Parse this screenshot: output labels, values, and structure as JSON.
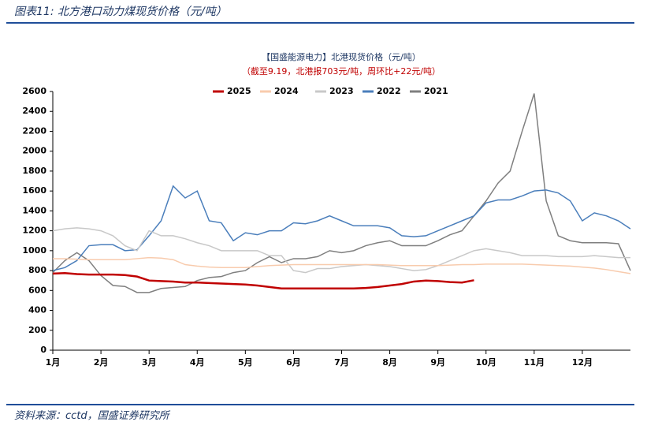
{
  "header": {
    "title": "图表11:  北方港口动力煤现货价格（元/吨）"
  },
  "chart_data": {
    "type": "line",
    "title": "【国盛能源电力】北港现货价格（元/吨）",
    "subtitle": "（截至9.19，北港报703元/吨，周环比+22元/吨）",
    "x": [
      1,
      1.25,
      1.5,
      1.75,
      2,
      2.25,
      2.5,
      2.75,
      3,
      3.25,
      3.5,
      3.75,
      4,
      4.25,
      4.5,
      4.75,
      5,
      5.25,
      5.5,
      5.75,
      6,
      6.25,
      6.5,
      6.75,
      7,
      7.25,
      7.5,
      7.75,
      8,
      8.25,
      8.5,
      8.75,
      9,
      9.25,
      9.5,
      9.75,
      10,
      10.25,
      10.5,
      10.75,
      11,
      11.25,
      11.5,
      11.75,
      12,
      12.25,
      12.5,
      12.75,
      13
    ],
    "xlim": [
      1,
      13
    ],
    "xticks": [
      {
        "value": 1,
        "label": "1月"
      },
      {
        "value": 2,
        "label": "2月"
      },
      {
        "value": 3,
        "label": "3月"
      },
      {
        "value": 4,
        "label": "4月"
      },
      {
        "value": 5,
        "label": "5月"
      },
      {
        "value": 6,
        "label": "6月"
      },
      {
        "value": 7,
        "label": "7月"
      },
      {
        "value": 8,
        "label": "8月"
      },
      {
        "value": 9,
        "label": "9月"
      },
      {
        "value": 10,
        "label": "10月"
      },
      {
        "value": 11,
        "label": "11月"
      },
      {
        "value": 12,
        "label": "12月"
      }
    ],
    "ylim": [
      0,
      2600
    ],
    "yticks": [
      0,
      200,
      400,
      600,
      800,
      1000,
      1200,
      1400,
      1600,
      1800,
      2000,
      2200,
      2400,
      2600
    ],
    "grid": false,
    "series": [
      {
        "name": "2025",
        "color": "#c00000",
        "width": 2.5,
        "values": [
          770,
          775,
          765,
          760,
          760,
          760,
          755,
          740,
          700,
          695,
          690,
          680,
          680,
          675,
          670,
          665,
          660,
          650,
          635,
          620,
          620,
          620,
          620,
          620,
          620,
          620,
          625,
          635,
          650,
          665,
          690,
          700,
          695,
          685,
          680,
          703,
          null,
          null,
          null,
          null,
          null,
          null,
          null,
          null,
          null,
          null,
          null,
          null,
          null
        ]
      },
      {
        "name": "2024",
        "color": "#f8cbad",
        "width": 1.5,
        "values": [
          920,
          920,
          915,
          910,
          910,
          910,
          910,
          920,
          930,
          925,
          910,
          860,
          845,
          835,
          830,
          830,
          830,
          840,
          850,
          855,
          860,
          860,
          860,
          860,
          860,
          860,
          860,
          860,
          855,
          850,
          850,
          850,
          850,
          855,
          860,
          860,
          865,
          865,
          865,
          865,
          860,
          855,
          850,
          845,
          835,
          825,
          810,
          790,
          770
        ]
      },
      {
        "name": "2023",
        "color": "#c8c8c8",
        "width": 1.5,
        "values": [
          1200,
          1220,
          1230,
          1220,
          1200,
          1150,
          1050,
          1000,
          1200,
          1150,
          1150,
          1120,
          1080,
          1050,
          1000,
          1000,
          1000,
          1000,
          950,
          950,
          800,
          780,
          820,
          820,
          840,
          850,
          860,
          850,
          840,
          820,
          800,
          810,
          850,
          900,
          950,
          1000,
          1020,
          1000,
          980,
          950,
          950,
          950,
          940,
          940,
          940,
          950,
          940,
          930,
          930
        ]
      },
      {
        "name": "2022",
        "color": "#4a7ebb",
        "width": 1.5,
        "values": [
          800,
          830,
          900,
          1050,
          1060,
          1060,
          1000,
          1010,
          1150,
          1300,
          1650,
          1530,
          1600,
          1300,
          1280,
          1100,
          1180,
          1160,
          1200,
          1200,
          1280,
          1270,
          1300,
          1350,
          1300,
          1250,
          1250,
          1250,
          1230,
          1150,
          1140,
          1150,
          1200,
          1250,
          1300,
          1350,
          1480,
          1510,
          1510,
          1550,
          1600,
          1610,
          1580,
          1500,
          1300,
          1380,
          1350,
          1300,
          1220
        ]
      },
      {
        "name": "2021",
        "color": "#7f7f7f",
        "width": 1.5,
        "values": [
          780,
          900,
          980,
          900,
          750,
          650,
          640,
          580,
          580,
          620,
          630,
          640,
          700,
          730,
          740,
          780,
          800,
          880,
          940,
          880,
          920,
          920,
          940,
          1000,
          980,
          1000,
          1050,
          1080,
          1100,
          1050,
          1050,
          1050,
          1100,
          1160,
          1200,
          1350,
          1500,
          1680,
          1800,
          2200,
          2580,
          1500,
          1150,
          1100,
          1080,
          1080,
          1080,
          1070,
          800
        ]
      }
    ]
  },
  "footer": {
    "source": "资料来源：cctd，国盛证券研究所"
  }
}
